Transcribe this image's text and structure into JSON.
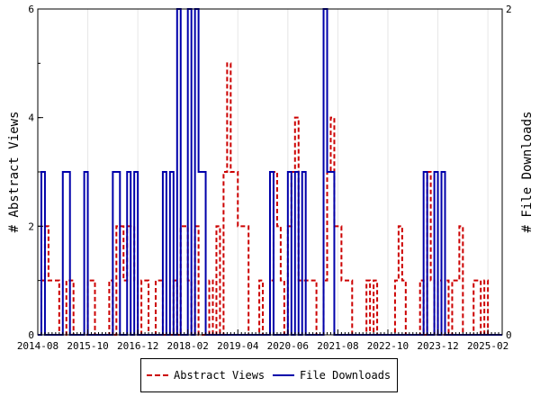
{
  "chart_data": {
    "type": "line",
    "xlabel": "",
    "x_tick_labels": [
      "2014-08",
      "2015-10",
      "2016-12",
      "2018-02",
      "2019-04",
      "2020-06",
      "2021-08",
      "2022-10",
      "2023-12",
      "2025-02"
    ],
    "y_left": {
      "label": "# Abstract Views",
      "ylim": [
        0,
        6
      ],
      "ticks": [
        "0",
        "2",
        "4",
        "6"
      ]
    },
    "y_right": {
      "label": "# File Downloads",
      "ylim": [
        0,
        2
      ],
      "ticks": [
        "0",
        "2"
      ]
    },
    "x_months": 130,
    "series": [
      {
        "name": "Abstract Views",
        "axis": "left",
        "color": "#cc0000",
        "style": "dashed",
        "values": [
          0,
          1,
          2,
          1,
          1,
          1,
          0,
          0,
          1,
          1,
          0,
          0,
          0,
          0,
          1,
          1,
          0,
          0,
          0,
          0,
          1,
          0,
          2,
          2,
          1,
          2,
          2,
          1,
          0,
          1,
          1,
          0,
          0,
          1,
          1,
          0,
          0,
          0,
          1,
          0,
          2,
          2,
          1,
          0,
          2,
          0,
          0,
          0,
          1,
          0,
          2,
          0,
          3,
          5,
          3,
          3,
          2,
          2,
          2,
          0,
          0,
          0,
          1,
          0,
          0,
          1,
          3,
          2,
          1,
          0,
          2,
          3,
          4,
          1,
          1,
          1,
          1,
          1,
          0,
          0,
          1,
          3,
          4,
          2,
          2,
          1,
          1,
          1,
          0,
          0,
          0,
          0,
          1,
          0,
          1,
          0,
          0,
          0,
          0,
          0,
          1,
          2,
          1,
          0,
          0,
          0,
          0,
          1,
          0,
          3,
          1,
          0,
          1,
          0,
          1,
          0,
          1,
          1,
          2,
          0,
          0,
          0,
          1,
          1,
          0,
          1,
          0,
          0,
          0,
          0
        ]
      },
      {
        "name": "File Downloads",
        "axis": "right",
        "color": "#0000aa",
        "style": "solid",
        "values": [
          0,
          1,
          0,
          0,
          0,
          0,
          0,
          1,
          1,
          0,
          0,
          0,
          0,
          1,
          0,
          0,
          0,
          0,
          0,
          0,
          0,
          1,
          1,
          0,
          0,
          1,
          0,
          1,
          0,
          0,
          0,
          0,
          0,
          0,
          0,
          1,
          0,
          1,
          0,
          2,
          0,
          0,
          2,
          0,
          2,
          1,
          1,
          0,
          0,
          0,
          0,
          0,
          0,
          0,
          0,
          0,
          0,
          0,
          0,
          0,
          0,
          0,
          0,
          0,
          0,
          1,
          0,
          0,
          0,
          0,
          1,
          0,
          1,
          0,
          1,
          0,
          0,
          0,
          0,
          0,
          2,
          1,
          1,
          0,
          0,
          0,
          0,
          0,
          0,
          0,
          0,
          0,
          0,
          0,
          0,
          0,
          0,
          0,
          0,
          0,
          0,
          0,
          0,
          0,
          0,
          0,
          0,
          0,
          1,
          0,
          0,
          1,
          0,
          1,
          0,
          0,
          0,
          0,
          0,
          0,
          0,
          0,
          0,
          0,
          0,
          0,
          0,
          0,
          0,
          0
        ]
      }
    ]
  }
}
